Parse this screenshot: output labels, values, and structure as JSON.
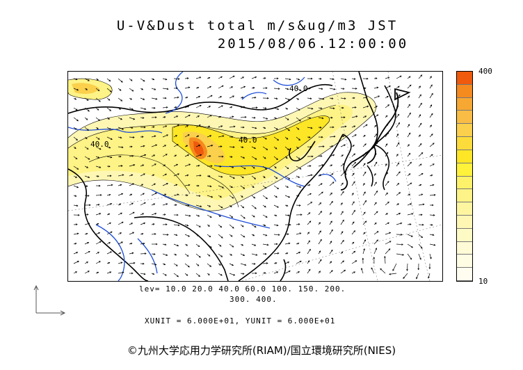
{
  "title": {
    "line1": "U-V&Dust total m/s&ug/m3 JST",
    "line2": "2015/08/06.12:00:00"
  },
  "map": {
    "contour_labels": [
      "40.0",
      "40.0",
      "40.0"
    ],
    "colors": {
      "land_outline": "#000000",
      "rivers": "#1f4fd8",
      "vector": "#000000"
    }
  },
  "colorbar": {
    "max_label": "400",
    "min_label": "10",
    "colors": [
      "#ef5a0d",
      "#f58a1e",
      "#f7a832",
      "#f9bd46",
      "#fbd04c",
      "#fcdc3a",
      "#fde625",
      "#fef23a",
      "#fef26a",
      "#fef386",
      "#fef5a0",
      "#fef7b4",
      "#fefac6",
      "#fefbd6",
      "#fffce4",
      "#fffdf0"
    ]
  },
  "legend": {
    "levels_line1": "lev= 10.0 20.0 40.0 60.0 100. 150. 200.",
    "levels_line2": "300. 400.",
    "units": "XUNIT = 6.000E+01, YUNIT = 6.000E+01"
  },
  "credit": "©九州大学応用力学研究所(RIAM)/国立環境研究所(NIES)"
}
